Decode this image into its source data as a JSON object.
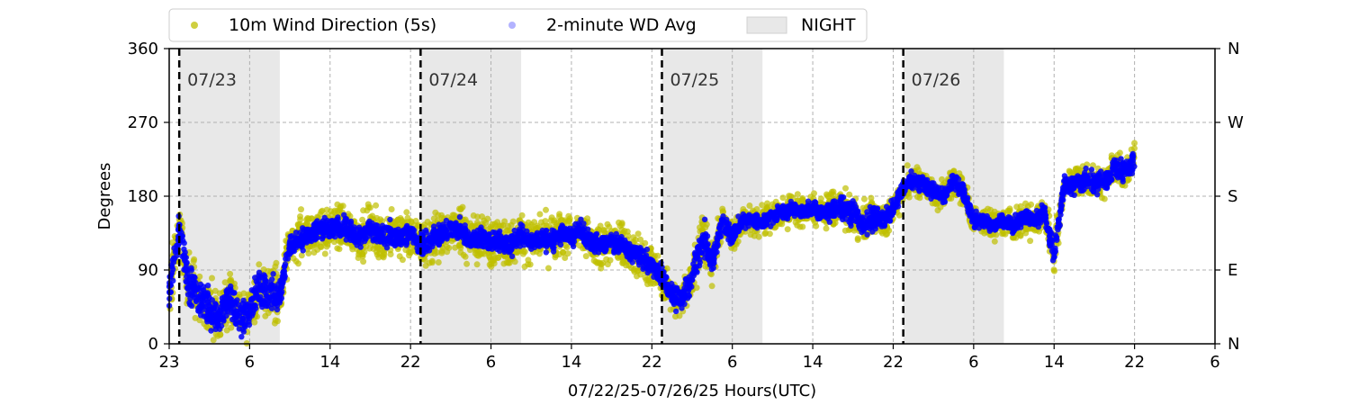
{
  "chart_data": {
    "type": "scatter",
    "xlabel": "07/22/25-07/26/25  Hours(UTC)",
    "ylabel": "Degrees",
    "xlim": [
      23,
      127
    ],
    "ylim": [
      0,
      360
    ],
    "x_ticks": [
      {
        "value": 23,
        "label": "23"
      },
      {
        "value": 31,
        "label": "6"
      },
      {
        "value": 39,
        "label": "14"
      },
      {
        "value": 47,
        "label": "22"
      },
      {
        "value": 55,
        "label": "6"
      },
      {
        "value": 63,
        "label": "14"
      },
      {
        "value": 71,
        "label": "22"
      },
      {
        "value": 79,
        "label": "6"
      },
      {
        "value": 87,
        "label": "14"
      },
      {
        "value": 95,
        "label": "22"
      },
      {
        "value": 103,
        "label": "6"
      },
      {
        "value": 111,
        "label": "14"
      },
      {
        "value": 119,
        "label": "22"
      },
      {
        "value": 127,
        "label": "6"
      }
    ],
    "y_ticks": [
      {
        "value": 0,
        "label": "0"
      },
      {
        "value": 90,
        "label": "90"
      },
      {
        "value": 180,
        "label": "180"
      },
      {
        "value": 270,
        "label": "270"
      },
      {
        "value": 360,
        "label": "360"
      }
    ],
    "right_ticks": [
      {
        "value": 0,
        "label": "N"
      },
      {
        "value": 90,
        "label": "E"
      },
      {
        "value": 180,
        "label": "S"
      },
      {
        "value": 270,
        "label": "W"
      },
      {
        "value": 360,
        "label": "N"
      }
    ],
    "grid": true,
    "legend_position": "top-center",
    "legend": [
      {
        "label": "10m Wind Direction (5s)",
        "color": "#bfbf00",
        "kind": "dot"
      },
      {
        "label": "2-minute WD Avg",
        "color": "#0000ff",
        "kind": "dot-faint"
      },
      {
        "label": "NIGHT",
        "color": "#e8e8e8",
        "kind": "patch"
      }
    ],
    "night_bands": [
      [
        24,
        34
      ],
      [
        48,
        58
      ],
      [
        72,
        82
      ],
      [
        96,
        106
      ]
    ],
    "midnights": [
      {
        "x": 24,
        "label": "07/23"
      },
      {
        "x": 48,
        "label": "07/24"
      },
      {
        "x": 72,
        "label": "07/25"
      },
      {
        "x": 96,
        "label": "07/26"
      }
    ],
    "series": [
      {
        "name": "10m Wind Direction (5s)",
        "color": "#bfbf00",
        "x": [
          23,
          24,
          25,
          26,
          27,
          28,
          29,
          30,
          31,
          32,
          33,
          34,
          35,
          36,
          37,
          38,
          39,
          40,
          41,
          42,
          43,
          44,
          45,
          46,
          47,
          48,
          49,
          50,
          51,
          52,
          53,
          54,
          55,
          56,
          57,
          58,
          59,
          60,
          61,
          62,
          63,
          64,
          65,
          66,
          67,
          68,
          69,
          70,
          71,
          72,
          73,
          74,
          75,
          76,
          77,
          78,
          79,
          80,
          81,
          82,
          83,
          84,
          85,
          86,
          87,
          88,
          89,
          90,
          91,
          92,
          93,
          94,
          95,
          96,
          97,
          98,
          99,
          100,
          101,
          102,
          103,
          104,
          105,
          106,
          107,
          108,
          109,
          110,
          111,
          112,
          113,
          114,
          115,
          116,
          117,
          118,
          119
        ],
        "y": [
          60,
          140,
          70,
          60,
          40,
          30,
          60,
          30,
          40,
          70,
          60,
          60,
          120,
          125,
          135,
          140,
          140,
          145,
          135,
          130,
          140,
          130,
          135,
          130,
          135,
          120,
          125,
          135,
          140,
          140,
          125,
          130,
          125,
          125,
          120,
          135,
          125,
          130,
          125,
          135,
          130,
          140,
          125,
          120,
          125,
          120,
          110,
          105,
          95,
          80,
          60,
          55,
          80,
          130,
          100,
          150,
          130,
          150,
          150,
          150,
          155,
          160,
          165,
          160,
          165,
          160,
          165,
          165,
          160,
          145,
          155,
          150,
          165,
          190,
          200,
          195,
          185,
          180,
          200,
          185,
          150,
          150,
          145,
          150,
          145,
          155,
          150,
          160,
          110,
          195,
          195,
          200,
          195,
          200,
          215,
          210,
          225
        ],
        "spread": [
          60,
          50,
          60,
          50,
          50,
          50,
          60,
          50,
          50,
          55,
          55,
          55,
          45,
          45,
          45,
          45,
          45,
          45,
          45,
          45,
          45,
          45,
          45,
          45,
          45,
          45,
          45,
          45,
          45,
          45,
          45,
          45,
          45,
          45,
          45,
          45,
          45,
          45,
          45,
          45,
          45,
          45,
          45,
          45,
          45,
          45,
          45,
          45,
          45,
          40,
          35,
          35,
          40,
          50,
          45,
          30,
          35,
          30,
          30,
          30,
          30,
          30,
          30,
          30,
          30,
          30,
          35,
          40,
          40,
          40,
          35,
          35,
          30,
          30,
          30,
          30,
          30,
          30,
          30,
          30,
          30,
          30,
          30,
          30,
          30,
          30,
          30,
          35,
          40,
          30,
          30,
          30,
          30,
          30,
          30,
          30,
          30
        ]
      },
      {
        "name": "2-minute WD Avg",
        "color": "#0000ff",
        "x": [
          23,
          24,
          25,
          26,
          27,
          28,
          29,
          30,
          31,
          32,
          33,
          34,
          35,
          36,
          37,
          38,
          39,
          40,
          41,
          42,
          43,
          44,
          45,
          46,
          47,
          48,
          49,
          50,
          51,
          52,
          53,
          54,
          55,
          56,
          57,
          58,
          59,
          60,
          61,
          62,
          63,
          64,
          65,
          66,
          67,
          68,
          69,
          70,
          71,
          72,
          73,
          74,
          75,
          76,
          77,
          78,
          79,
          80,
          81,
          82,
          83,
          84,
          85,
          86,
          87,
          88,
          89,
          90,
          91,
          92,
          93,
          94,
          95,
          96,
          97,
          98,
          99,
          100,
          101,
          102,
          103,
          104,
          105,
          106,
          107,
          108,
          109,
          110,
          111,
          112,
          113,
          114,
          115,
          116,
          117,
          118,
          119
        ],
        "y": [
          60,
          140,
          70,
          60,
          40,
          30,
          60,
          30,
          40,
          70,
          60,
          60,
          120,
          125,
          135,
          140,
          140,
          145,
          135,
          130,
          140,
          130,
          135,
          130,
          135,
          120,
          125,
          135,
          140,
          140,
          125,
          130,
          125,
          125,
          120,
          135,
          125,
          130,
          125,
          135,
          130,
          140,
          125,
          120,
          125,
          120,
          110,
          105,
          95,
          80,
          60,
          55,
          80,
          130,
          100,
          150,
          130,
          150,
          150,
          150,
          155,
          160,
          165,
          160,
          165,
          160,
          165,
          165,
          160,
          145,
          155,
          150,
          165,
          190,
          200,
          195,
          185,
          180,
          200,
          185,
          150,
          150,
          145,
          150,
          145,
          155,
          150,
          160,
          110,
          195,
          195,
          200,
          195,
          200,
          215,
          210,
          225
        ],
        "spread": [
          40,
          30,
          40,
          40,
          35,
          30,
          40,
          30,
          30,
          40,
          35,
          35,
          20,
          20,
          20,
          20,
          20,
          20,
          20,
          20,
          20,
          20,
          20,
          20,
          20,
          20,
          20,
          20,
          20,
          20,
          20,
          20,
          20,
          20,
          20,
          20,
          20,
          20,
          20,
          20,
          20,
          20,
          20,
          20,
          20,
          20,
          20,
          20,
          20,
          20,
          20,
          20,
          25,
          40,
          25,
          15,
          20,
          15,
          15,
          15,
          15,
          15,
          15,
          15,
          15,
          15,
          20,
          25,
          25,
          25,
          20,
          20,
          15,
          15,
          15,
          15,
          15,
          15,
          15,
          15,
          15,
          15,
          15,
          15,
          15,
          15,
          15,
          20,
          25,
          20,
          20,
          20,
          20,
          20,
          20,
          20,
          20
        ]
      }
    ]
  }
}
